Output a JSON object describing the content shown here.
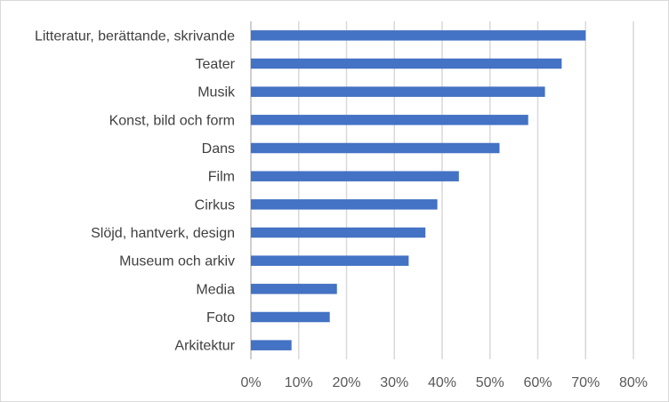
{
  "chart_data": {
    "type": "bar",
    "orientation": "horizontal",
    "categories": [
      "Litteratur, berättande, skrivande",
      "Teater",
      "Musik",
      "Konst, bild och form",
      "Dans",
      "Film",
      "Cirkus",
      "Slöjd, hantverk, design",
      "Museum och arkiv",
      "Media",
      "Foto",
      "Arkitektur"
    ],
    "values": [
      70,
      65,
      61.5,
      58,
      52,
      43.5,
      39,
      36.5,
      33,
      18,
      16.5,
      8.5
    ],
    "unit": "%",
    "xlim": [
      0,
      80
    ],
    "ticks": [
      "0%",
      "10%",
      "20%",
      "30%",
      "40%",
      "50%",
      "60%",
      "70%",
      "80%"
    ],
    "grid": true,
    "bar_color": "#4472c4"
  }
}
